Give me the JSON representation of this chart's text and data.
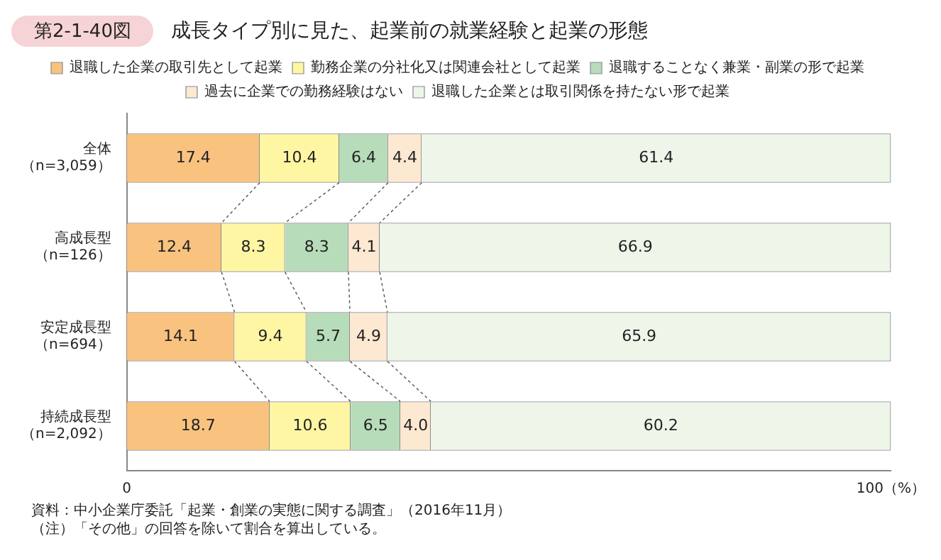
{
  "chart_data": {
    "type": "bar",
    "orientation": "horizontal",
    "stacked": true,
    "title": "成長タイプ別に見た、起業前の就業経験と起業の形態",
    "subtitle": "第2-1-40図",
    "categories": [
      "全体（n=3,059）",
      "高成長型（n=126）",
      "安定成長型（n=694）",
      "持続成長型（n=2,092）"
    ],
    "series": [
      {
        "name": "退職した企業の取引先として起業",
        "color": "#f9c27f",
        "values": [
          17.4,
          12.4,
          14.1,
          18.7
        ]
      },
      {
        "name": "勤務企業の分社化又は関連会社として起業",
        "color": "#fff6a3",
        "values": [
          10.4,
          8.3,
          9.4,
          10.6
        ]
      },
      {
        "name": "退職することなく兼業・副業の形で起業",
        "color": "#b7dcb9",
        "values": [
          6.4,
          8.3,
          5.7,
          6.5
        ]
      },
      {
        "name": "過去に企業での勤務経験はない",
        "color": "#fde8d2",
        "values": [
          4.4,
          4.1,
          4.9,
          4.0
        ],
        "value_labels": [
          "4.4",
          "4.1",
          "4.9",
          "4.0"
        ]
      },
      {
        "name": "退職した企業とは取引関係を持たない形で起業",
        "color": "#eef6ea",
        "values": [
          61.4,
          66.9,
          65.9,
          60.2
        ]
      }
    ],
    "xlim": [
      0,
      100
    ],
    "xticks": [
      0,
      {
        "value": 100,
        "label": "100（%）"
      }
    ],
    "data_labels": true,
    "grid": false,
    "legend": "top",
    "annotations": [
      "資料：中小企業庁委託「起業・創業の実態に関する調査」（2016年11月）",
      "（注）「その他」の回答を除いて割合を算出している。"
    ]
  }
}
